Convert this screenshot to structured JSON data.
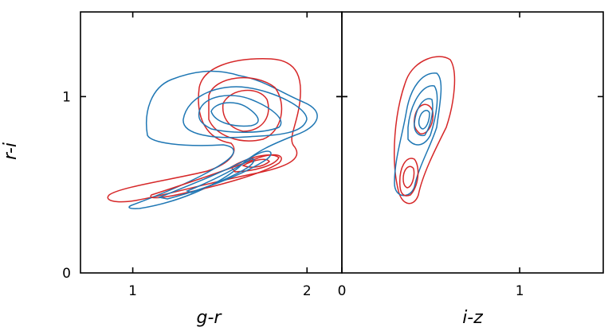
{
  "chart_data": [
    {
      "type": "contour",
      "xlabel": "g-r",
      "ylabel": "r-i",
      "xlim": [
        0.7,
        2.2
      ],
      "ylim": [
        0,
        1.48
      ],
      "xticks": [
        1,
        2
      ],
      "yticks": [
        0,
        1
      ],
      "colors": [
        "#d62728",
        "#1f77b4"
      ]
    },
    {
      "type": "contour",
      "xlabel": "i-z",
      "xlim": [
        0,
        1.47
      ],
      "ylim": [
        0,
        1.48
      ],
      "xticks": [
        0,
        1
      ],
      "colors": [
        "#d62728",
        "#1f77b4"
      ]
    }
  ]
}
